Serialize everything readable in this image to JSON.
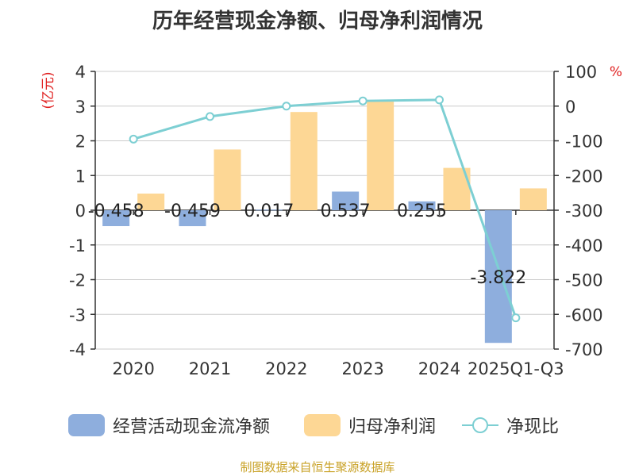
{
  "title": "历年经营现金净额、归母净利润情况",
  "source": "制图数据来自恒生聚源数据库",
  "colors": {
    "cashflow": "#8eaedd",
    "profit": "#fdd795",
    "ratio": "#7dcfd3",
    "axis_unit": "#e02020",
    "source": "#c9a227"
  },
  "chart_data": {
    "type": "bar",
    "categories": [
      "2020",
      "2021",
      "2022",
      "2023",
      "2024",
      "2025Q1-Q3"
    ],
    "left_axis": {
      "unit": "(亿元)",
      "ylim": [
        -4,
        4
      ],
      "ticks": [
        4,
        3,
        2,
        1,
        0,
        -1,
        -2,
        -3,
        -4
      ]
    },
    "right_axis": {
      "unit": "%",
      "ylim": [
        -700,
        100
      ],
      "ticks": [
        100,
        0,
        -100,
        -200,
        -300,
        -400,
        -500,
        -600,
        -700
      ]
    },
    "grid": true,
    "legend_position": "bottom",
    "series": [
      {
        "name": "经营活动现金流净额",
        "kind": "bar",
        "axis": "left",
        "values": [
          -0.458,
          -0.459,
          0.017,
          0.537,
          0.255,
          -3.822
        ],
        "labels": [
          "-0.458",
          "-0.459",
          "0.017",
          "0.537",
          "0.255",
          "-3.822"
        ]
      },
      {
        "name": "归母净利润",
        "kind": "bar",
        "axis": "left",
        "values": [
          0.48,
          1.75,
          2.83,
          3.13,
          1.22,
          0.63
        ]
      },
      {
        "name": "净现比",
        "kind": "line",
        "axis": "right",
        "values": [
          -95,
          -30,
          0,
          15,
          18,
          -610
        ]
      }
    ]
  }
}
